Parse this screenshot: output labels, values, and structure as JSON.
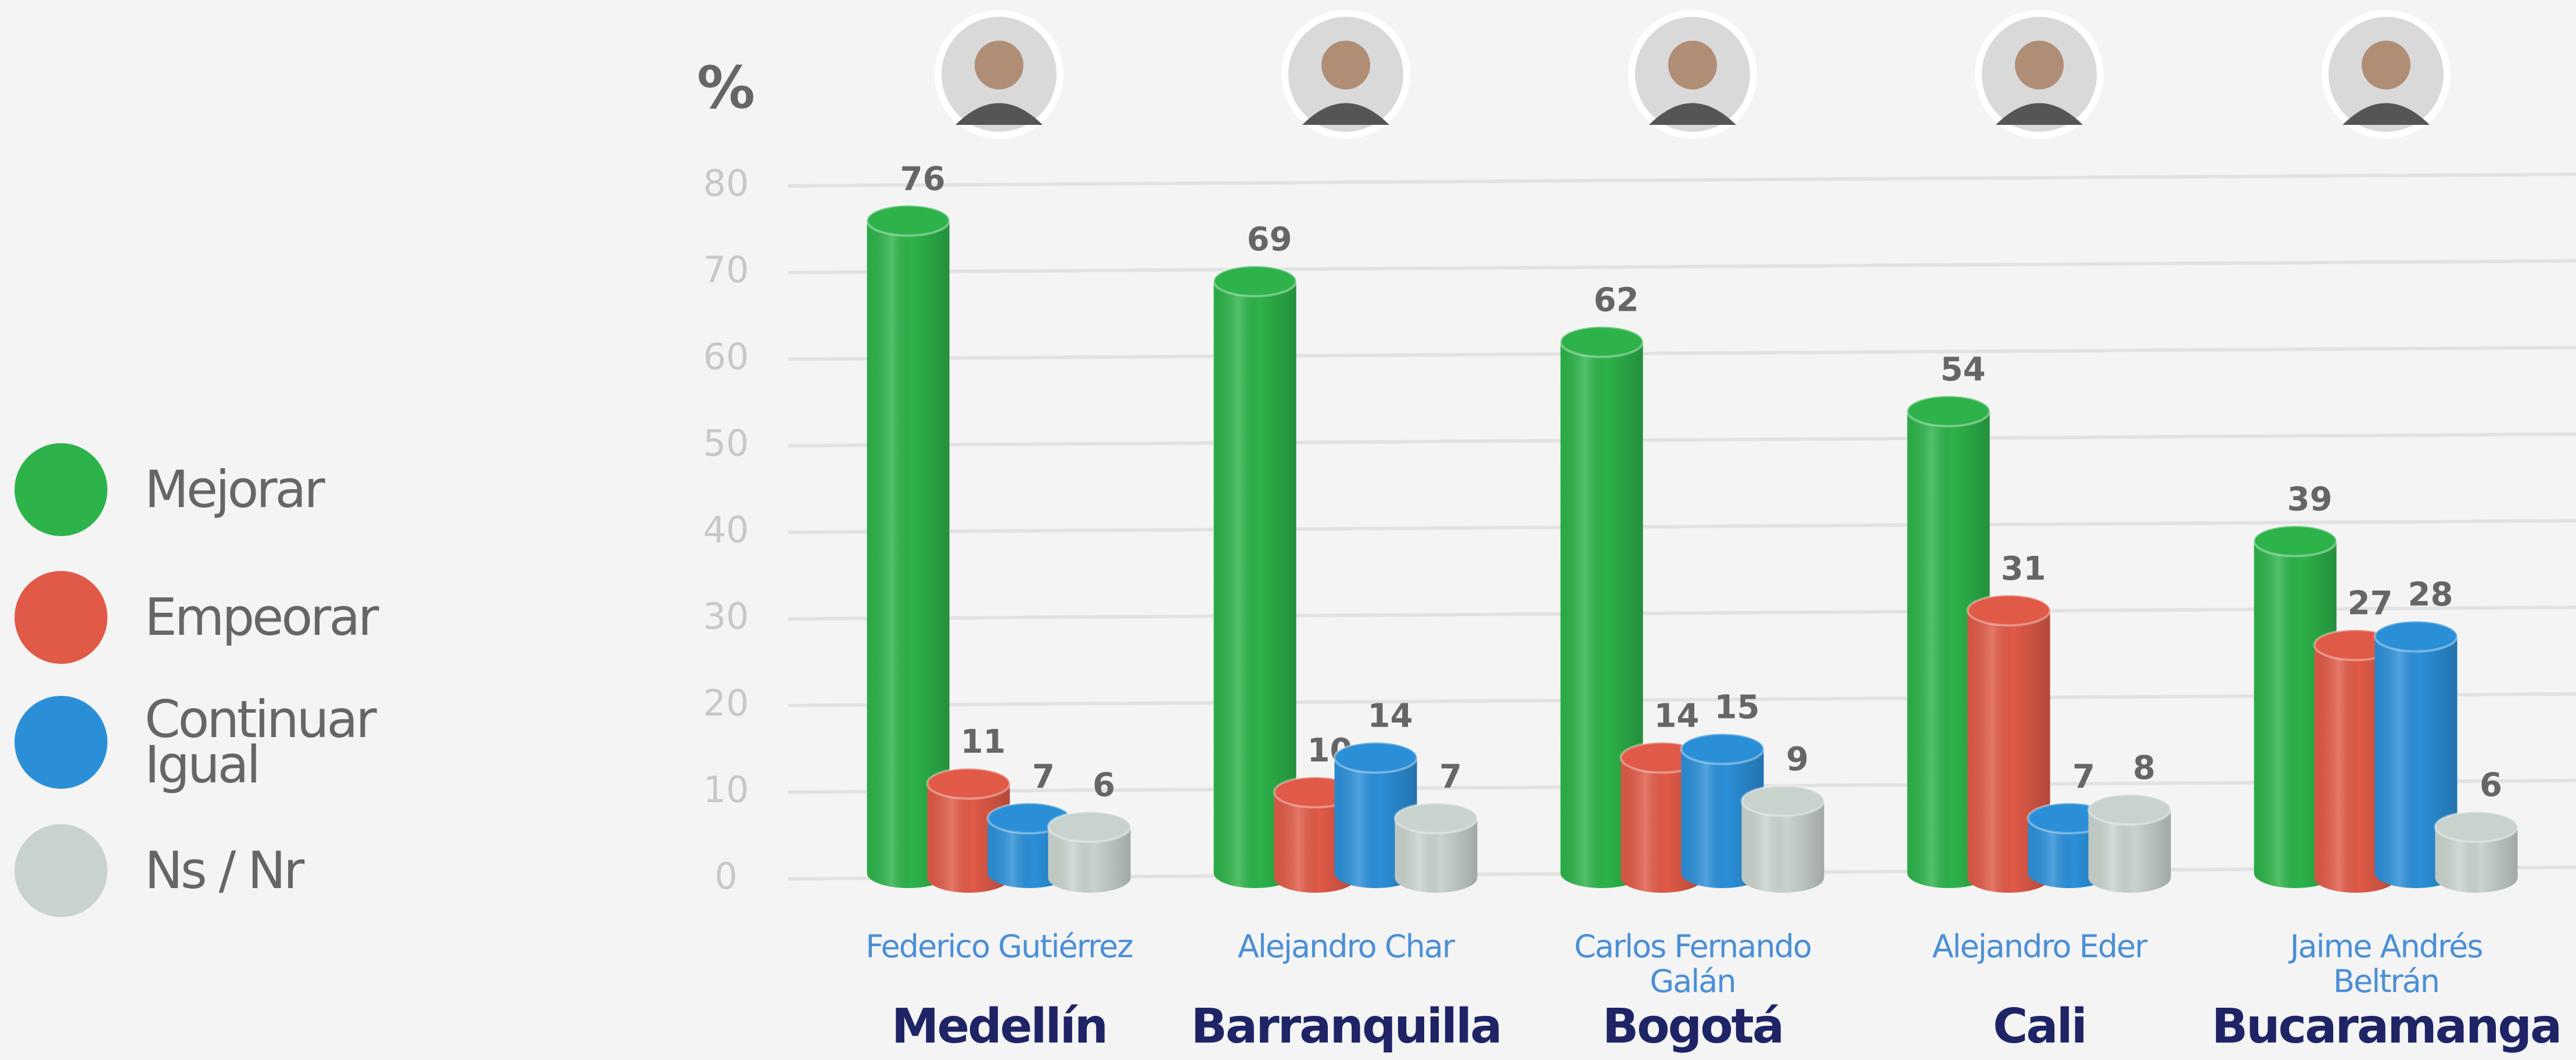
{
  "chart_data": {
    "type": "bar",
    "y_label": "%",
    "categories": [
      "Medellín",
      "Barranquilla",
      "Bogotá",
      "Cali",
      "Bucaramanga"
    ],
    "candidates": [
      "Federico Gutiérrez",
      "Alejandro Char",
      "Carlos Fernando Galán",
      "Alejandro Eder",
      "Jaime Andrés Beltrán"
    ],
    "series": [
      {
        "name": "Mejorar",
        "color": "#2db34a",
        "values": [
          76,
          69,
          62,
          54,
          39
        ]
      },
      {
        "name": "Empeorar",
        "color": "#e05a47",
        "values": [
          11,
          10,
          14,
          31,
          27
        ]
      },
      {
        "name": "Continuar Igual",
        "color": "#2b8fd8",
        "values": [
          7,
          14,
          15,
          7,
          28
        ]
      },
      {
        "name": "Ns / Nr",
        "color": "#c9d3cd",
        "values": [
          6,
          7,
          9,
          8,
          6
        ]
      }
    ],
    "ylim": [
      0,
      80
    ],
    "yticks": [
      0,
      10,
      20,
      30,
      40,
      50,
      60,
      70,
      80
    ],
    "grid": true
  }
}
